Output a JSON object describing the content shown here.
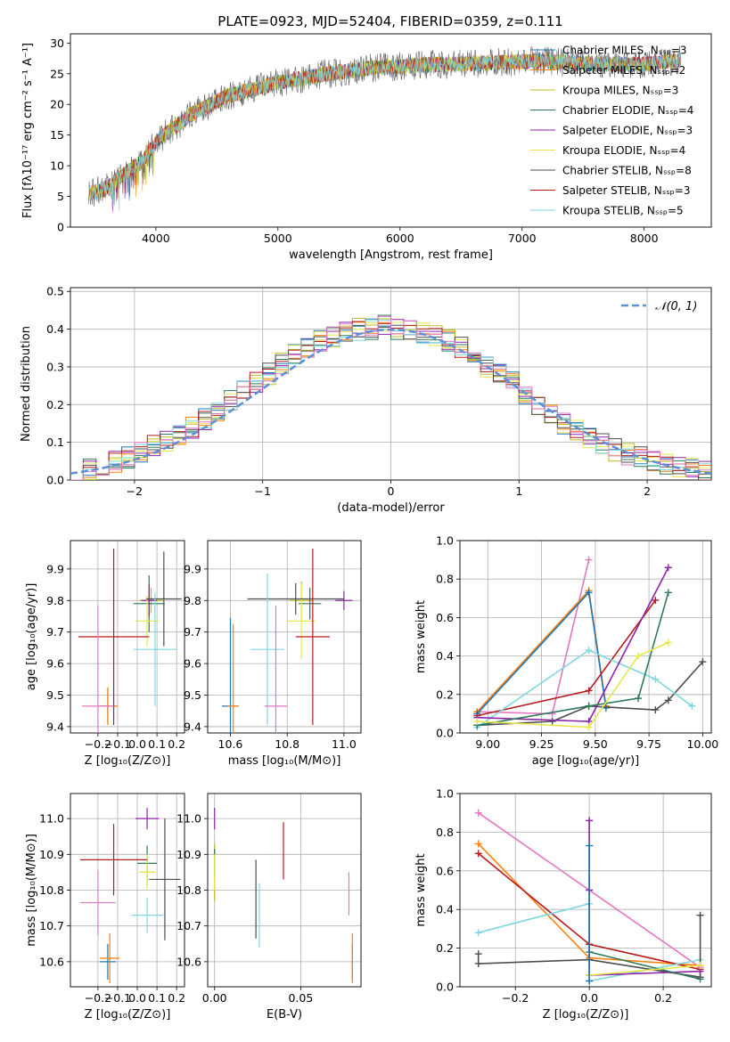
{
  "title": "PLATE=0923, MJD=52404, FIBERID=0359, z=0.111",
  "colors": {
    "series": [
      "#1f77b4",
      "#ff7f0e",
      "#bcbd22",
      "#2f7a5a",
      "#8e24aa",
      "#e6e84a",
      "#4d4d4d",
      "#b71c1c",
      "#7fd8e0"
    ],
    "pink": "#e377c2",
    "normal": "#5b8fd6",
    "grid": "#b0b0b0"
  },
  "chart_data": [
    {
      "id": "spectrum",
      "type": "line",
      "title": "PLATE=0923, MJD=52404, FIBERID=0359, z=0.111",
      "xlabel": "wavelength [Angstrom, rest frame]",
      "ylabel": "Flux [fλ10⁻¹⁷ erg cm⁻² s⁻¹ A⁻¹]",
      "xlim": [
        3300,
        8550
      ],
      "ylim": [
        0,
        31.5
      ],
      "xticks": [
        4000,
        5000,
        6000,
        7000,
        8000
      ],
      "yticks": [
        0,
        5,
        10,
        15,
        20,
        25,
        30
      ],
      "grid": false,
      "legend": "top-right",
      "continuum": {
        "x": [
          3450,
          3550,
          3650,
          3700,
          3800,
          3900,
          3950,
          4000,
          4100,
          4200,
          4300,
          4400,
          4500,
          4600,
          4800,
          5000,
          5200,
          5400,
          5600,
          5800,
          6000,
          6200,
          6400,
          6600,
          6800,
          7000,
          7200,
          7400,
          7600,
          7800,
          8000,
          8200,
          8300
        ],
        "y": [
          5.5,
          6.0,
          7.0,
          8.0,
          9.5,
          11.0,
          12.5,
          14.0,
          15.5,
          17.0,
          18.5,
          19.5,
          20.5,
          21.5,
          22.5,
          23.5,
          24.2,
          25.0,
          25.5,
          26.0,
          26.2,
          26.5,
          26.5,
          26.6,
          26.8,
          27.0,
          27.0,
          26.8,
          26.6,
          26.5,
          26.5,
          27.0,
          27.2
        ]
      },
      "legend_entries": [
        "Chabrier MILES, N_SSP=3",
        "Salpeter MILES, N_SSP=2",
        "Kroupa MILES, N_SSP=3",
        "Chabrier ELODIE, N_SSP=4",
        "Salpeter ELODIE, N_SSP=3",
        "Kroupa ELODIE, N_SSP=4",
        "Chabrier STELIB, N_SSP=8",
        "Salpeter STELIB, N_SSP=3",
        "Kroupa STELIB, N_SSP=5"
      ]
    },
    {
      "id": "residuals",
      "type": "line",
      "xlabel": "(data-model)/error",
      "ylabel": "Normed distribution",
      "xlim": [
        -2.5,
        2.5
      ],
      "ylim": [
        0,
        0.51
      ],
      "xticks": [
        -2,
        -1,
        0,
        1,
        2
      ],
      "yticks": [
        0.0,
        0.1,
        0.2,
        0.3,
        0.4,
        0.5
      ],
      "grid": true,
      "legend": "top-right",
      "legend_entries": [
        "𝒩(0, 1)"
      ],
      "bin_width": 0.1,
      "base_bins": [
        0.02,
        0.03,
        0.04,
        0.05,
        0.06,
        0.07,
        0.09,
        0.1,
        0.12,
        0.14,
        0.16,
        0.18,
        0.21,
        0.24,
        0.26,
        0.28,
        0.31,
        0.33,
        0.35,
        0.37,
        0.38,
        0.39,
        0.4,
        0.4,
        0.41,
        0.4,
        0.4,
        0.39,
        0.38,
        0.37,
        0.35,
        0.33,
        0.3,
        0.28,
        0.26,
        0.23,
        0.2,
        0.17,
        0.15,
        0.13,
        0.11,
        0.1,
        0.08,
        0.07,
        0.06,
        0.05,
        0.04,
        0.03,
        0.03,
        0.02
      ]
    },
    {
      "id": "z-vs-age",
      "type": "scatter",
      "xlabel": "Z [log₁₀(Z/Z⊙)]",
      "ylabel": "age  [log₁₀(age/yr)]",
      "xlim": [
        -0.34,
        0.24
      ],
      "ylim": [
        9.38,
        9.99
      ],
      "xticks": [
        -0.2,
        -0.1,
        0.0,
        0.1,
        0.2
      ],
      "yticks": [
        9.4,
        9.5,
        9.6,
        9.7,
        9.8,
        9.9
      ],
      "grid": true,
      "points": [
        {
          "x": -0.15,
          "xerr": 0.04,
          "y": 9.465,
          "yerr": 0.05,
          "color": "#1f77b4"
        },
        {
          "x": -0.15,
          "xerr": 0.05,
          "y": 9.465,
          "yerr": 0.06,
          "color": "#ff7f0e"
        },
        {
          "x": 0.07,
          "xerr": 0.06,
          "y": 9.8,
          "yerr": 0.04,
          "color": "#bcbd22"
        },
        {
          "x": 0.06,
          "xerr": 0.08,
          "y": 9.79,
          "yerr": 0.09,
          "color": "#2f7a5a"
        },
        {
          "x": 0.06,
          "xerr": 0.04,
          "y": 9.8,
          "yerr": 0.05,
          "color": "#8e24aa"
        },
        {
          "x": 0.05,
          "xerr": 0.06,
          "y": 9.735,
          "yerr": 0.08,
          "color": "#e6e84a"
        },
        {
          "x": 0.135,
          "xerr": 0.09,
          "y": 9.805,
          "yerr": 0.15,
          "color": "#4d4d4d"
        },
        {
          "x": -0.12,
          "xerr": 0.18,
          "y": 9.685,
          "yerr": 0.28,
          "color": "#b71c1c"
        },
        {
          "x": 0.09,
          "xerr": 0.11,
          "y": 9.645,
          "yerr": 0.18,
          "color": "#7fd8e0"
        },
        {
          "x": -0.2,
          "xerr": 0.08,
          "y": 9.465,
          "yerr": 0.32,
          "color": "#e377c2"
        }
      ]
    },
    {
      "id": "mass-vs-age",
      "type": "scatter",
      "xlabel": "mass [log₁₀(M/M⊙)]",
      "ylabel": "",
      "xlim": [
        10.52,
        11.06
      ],
      "ylim": [
        9.38,
        9.99
      ],
      "xticks": [
        10.6,
        10.8,
        11.0
      ],
      "yticks": [
        9.4,
        9.5,
        9.6,
        9.7,
        9.8,
        9.9
      ],
      "grid": true,
      "points": [
        {
          "x": 10.6,
          "xerr": 0.03,
          "y": 9.465,
          "yerr": 0.28,
          "color": "#1f77b4"
        },
        {
          "x": 10.61,
          "xerr": 0.02,
          "y": 9.465,
          "yerr": 0.26,
          "color": "#ff7f0e"
        },
        {
          "x": 10.85,
          "xerr": 0.04,
          "y": 9.8,
          "yerr": 0.06,
          "color": "#bcbd22"
        },
        {
          "x": 10.88,
          "xerr": 0.04,
          "y": 9.79,
          "yerr": 0.05,
          "color": "#2f7a5a"
        },
        {
          "x": 11.0,
          "xerr": 0.03,
          "y": 9.8,
          "yerr": 0.03,
          "color": "#8e24aa"
        },
        {
          "x": 10.85,
          "xerr": 0.05,
          "y": 9.735,
          "yerr": 0.12,
          "color": "#e6e84a"
        },
        {
          "x": 10.83,
          "xerr": 0.17,
          "y": 9.805,
          "yerr": 0.05,
          "color": "#4d4d4d"
        },
        {
          "x": 10.89,
          "xerr": 0.06,
          "y": 9.685,
          "yerr": 0.28,
          "color": "#b71c1c"
        },
        {
          "x": 10.73,
          "xerr": 0.06,
          "y": 9.645,
          "yerr": 0.24,
          "color": "#7fd8e0"
        },
        {
          "x": 10.76,
          "xerr": 0.04,
          "y": 9.465,
          "yerr": 0.32,
          "color": "#e377c2"
        }
      ]
    },
    {
      "id": "age-vs-weight",
      "type": "line",
      "xlabel": "age  [log₁₀(age/yr)]",
      "ylabel": "mass weight",
      "xlim": [
        8.87,
        10.04
      ],
      "ylim": [
        0,
        1.0
      ],
      "xticks": [
        9.0,
        9.25,
        9.5,
        9.75,
        10.0
      ],
      "yticks": [
        0.0,
        0.2,
        0.4,
        0.6,
        0.8,
        1.0
      ],
      "grid": true,
      "series": [
        {
          "color": "#e377c2",
          "x": [
            8.95,
            9.3,
            9.47
          ],
          "y": [
            0.11,
            0.1,
            0.9
          ]
        },
        {
          "color": "#ff7f0e",
          "x": [
            8.95,
            9.47,
            9.55
          ],
          "y": [
            0.11,
            0.74,
            0.14
          ]
        },
        {
          "color": "#1f77b4",
          "x": [
            8.95,
            9.47,
            9.55
          ],
          "y": [
            0.1,
            0.73,
            0.13
          ]
        },
        {
          "color": "#4d4d4d",
          "x": [
            8.95,
            9.3,
            9.47,
            9.78,
            9.84,
            10.0
          ],
          "y": [
            0.04,
            0.06,
            0.14,
            0.12,
            0.17,
            0.37
          ]
        },
        {
          "color": "#b71c1c",
          "x": [
            8.95,
            9.47,
            9.78
          ],
          "y": [
            0.09,
            0.22,
            0.69
          ]
        },
        {
          "color": "#7fd8e0",
          "x": [
            8.95,
            9.47,
            9.78,
            9.95
          ],
          "y": [
            0.03,
            0.43,
            0.28,
            0.14
          ]
        },
        {
          "color": "#8e24aa",
          "x": [
            8.95,
            9.47,
            9.84
          ],
          "y": [
            0.08,
            0.06,
            0.86
          ]
        },
        {
          "color": "#2f7a5a",
          "x": [
            8.95,
            9.47,
            9.7,
            9.84
          ],
          "y": [
            0.04,
            0.14,
            0.18,
            0.73
          ]
        },
        {
          "color": "#e6e84a",
          "x": [
            8.95,
            9.47,
            9.7,
            9.84
          ],
          "y": [
            0.06,
            0.03,
            0.4,
            0.47
          ]
        }
      ]
    },
    {
      "id": "z-vs-mass",
      "type": "scatter",
      "xlabel": "Z [log₁₀(Z/Z⊙)]",
      "ylabel": "mass [log₁₀(M/M⊙)]",
      "xlim": [
        -0.34,
        0.24
      ],
      "ylim": [
        10.53,
        11.07
      ],
      "xticks": [
        -0.2,
        -0.1,
        0.0,
        0.1,
        0.2
      ],
      "yticks": [
        10.6,
        10.7,
        10.8,
        10.9,
        11.0
      ],
      "grid": true,
      "points": [
        {
          "x": -0.15,
          "xerr": 0.04,
          "y": 10.6,
          "yerr": 0.05,
          "color": "#1f77b4"
        },
        {
          "x": -0.14,
          "xerr": 0.05,
          "y": 10.61,
          "yerr": 0.07,
          "color": "#ff7f0e"
        },
        {
          "x": 0.05,
          "xerr": 0.04,
          "y": 10.85,
          "yerr": 0.04,
          "color": "#bcbd22"
        },
        {
          "x": 0.05,
          "xerr": 0.05,
          "y": 10.875,
          "yerr": 0.05,
          "color": "#2f7a5a"
        },
        {
          "x": 0.05,
          "xerr": 0.06,
          "y": 11.0,
          "yerr": 0.03,
          "color": "#8e24aa"
        },
        {
          "x": 0.05,
          "xerr": 0.04,
          "y": 10.85,
          "yerr": 0.05,
          "color": "#e6e84a"
        },
        {
          "x": 0.14,
          "xerr": 0.08,
          "y": 10.83,
          "yerr": 0.17,
          "color": "#4d4d4d"
        },
        {
          "x": -0.12,
          "xerr": 0.17,
          "y": 10.885,
          "yerr": 0.1,
          "color": "#b71c1c"
        },
        {
          "x": 0.05,
          "xerr": 0.08,
          "y": 10.73,
          "yerr": 0.05,
          "color": "#7fd8e0"
        },
        {
          "x": -0.2,
          "xerr": 0.09,
          "y": 10.765,
          "yerr": 0.09,
          "color": "#e377c2"
        }
      ]
    },
    {
      "id": "ebv-vs-mass",
      "type": "scatter",
      "xlabel": "E(B-V)",
      "ylabel": "",
      "xlim": [
        -0.004,
        0.085
      ],
      "ylim": [
        10.53,
        11.07
      ],
      "xticks": [
        0.0,
        0.05
      ],
      "yticks": [
        10.6,
        10.7,
        10.8,
        10.9,
        11.0
      ],
      "grid": true,
      "points": [
        {
          "x": 0.08,
          "xerr": 0,
          "y": 10.6,
          "yerr": 0.05,
          "color": "#1f77b4"
        },
        {
          "x": 0.08,
          "xerr": 0,
          "y": 10.61,
          "yerr": 0.07,
          "color": "#ff7f0e"
        },
        {
          "x": 0.0,
          "xerr": 0,
          "y": 10.85,
          "yerr": 0.08,
          "color": "#bcbd22"
        },
        {
          "x": 0.0,
          "xerr": 0,
          "y": 10.875,
          "yerr": 0.04,
          "color": "#2f7a5a"
        },
        {
          "x": 0.0,
          "xerr": 0,
          "y": 11.0,
          "yerr": 0.03,
          "color": "#8e24aa"
        },
        {
          "x": 0.0,
          "xerr": 0,
          "y": 10.85,
          "yerr": 0.05,
          "color": "#e6e84a"
        },
        {
          "x": 0.024,
          "xerr": 0,
          "y": 10.775,
          "yerr": 0.11,
          "color": "#4d4d4d"
        },
        {
          "x": 0.04,
          "xerr": 0,
          "y": 10.91,
          "yerr": 0.08,
          "color": "#b71c1c"
        },
        {
          "x": 0.026,
          "xerr": 0,
          "y": 10.73,
          "yerr": 0.09,
          "color": "#7fd8e0"
        },
        {
          "x": 0.078,
          "xerr": 0,
          "y": 10.79,
          "yerr": 0.06,
          "color": "#e377c2"
        }
      ]
    },
    {
      "id": "z-vs-weight",
      "type": "line",
      "xlabel": "Z [log₁₀(Z/Z⊙)]",
      "ylabel": "mass weight",
      "xlim": [
        -0.35,
        0.33
      ],
      "ylim": [
        0,
        1.0
      ],
      "xticks": [
        -0.2,
        0.0,
        0.2
      ],
      "yticks": [
        0.0,
        0.2,
        0.4,
        0.6,
        0.8,
        1.0
      ],
      "grid": true,
      "series": [
        {
          "color": "#e377c2",
          "x": [
            -0.3,
            0.3
          ],
          "y": [
            0.9,
            0.1
          ]
        },
        {
          "color": "#ff7f0e",
          "x": [
            -0.3,
            0.0,
            0.3
          ],
          "y": [
            0.74,
            0.15,
            0.11
          ]
        },
        {
          "color": "#b71c1c",
          "x": [
            -0.3,
            0.0,
            0.3
          ],
          "y": [
            0.69,
            0.22,
            0.09
          ]
        },
        {
          "color": "#7fd8e0",
          "x": [
            -0.3,
            0.0,
            0.0,
            0.3
          ],
          "y": [
            0.28,
            0.43,
            0.03,
            0.14
          ]
        },
        {
          "color": "#4d4d4d",
          "x": [
            -0.3,
            -0.3,
            0.0,
            0.3,
            0.3
          ],
          "y": [
            0.17,
            0.12,
            0.14,
            0.05,
            0.37
          ]
        },
        {
          "color": "#8e24aa",
          "x": [
            0.0,
            0.0,
            0.0,
            0.3
          ],
          "y": [
            0.86,
            0.5,
            0.06,
            0.08
          ]
        },
        {
          "color": "#2f7a5a",
          "x": [
            0.0,
            0.3
          ],
          "y": [
            0.18,
            0.04
          ]
        },
        {
          "color": "#e6e84a",
          "x": [
            0.0,
            0.3
          ],
          "y": [
            0.06,
            0.11
          ]
        },
        {
          "color": "#1f77b4",
          "x": [
            0.0,
            0.0
          ],
          "y": [
            0.73,
            0.03
          ]
        }
      ]
    }
  ]
}
